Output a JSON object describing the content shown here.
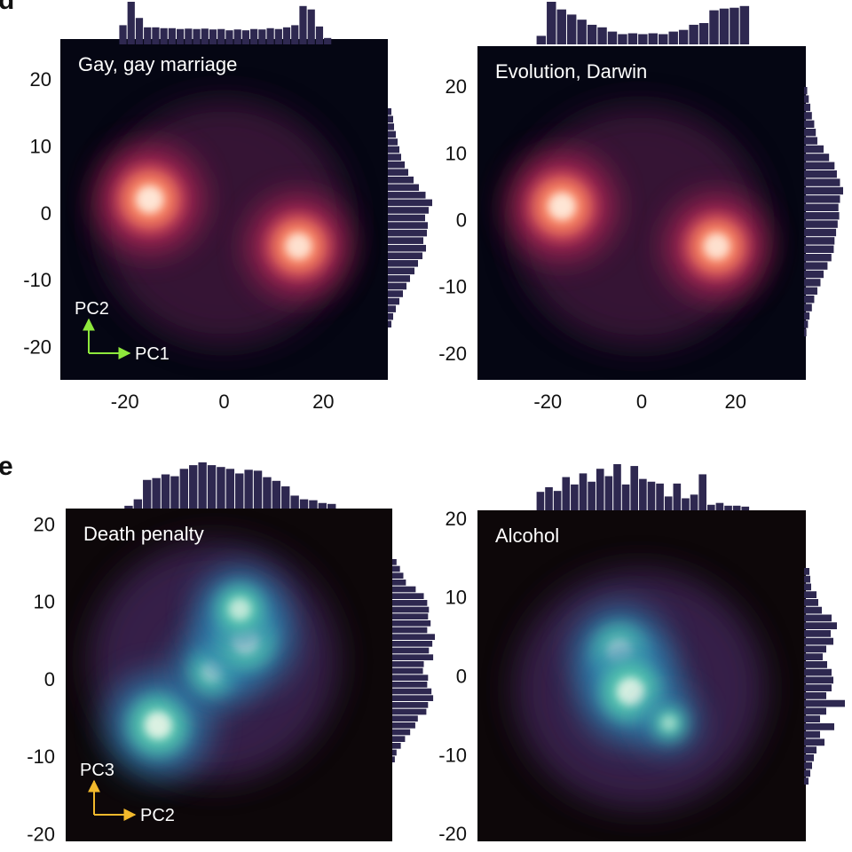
{
  "panel_labels": [
    "d",
    "e"
  ],
  "colors": {
    "histogram_bar": "#2e2850",
    "heatmap_magma_background": "#050613",
    "heatmap_mako_background": "#0d0709",
    "arrow_pc1_pc2": "#8ee83c",
    "arrow_pc2_pc3": "#f2b92c"
  },
  "chart_data": [
    {
      "type": "heatmap",
      "title": "Gay, gay marriage",
      "colormap": "magma",
      "xlabel": "PC1",
      "ylabel": "PC2",
      "xlim": [
        -33,
        33
      ],
      "ylim": [
        -25,
        26
      ],
      "xticks": [
        "-20",
        "0",
        "20"
      ],
      "yticks": [
        "-20",
        "-10",
        "0",
        "10",
        "20"
      ],
      "hotspots": [
        {
          "x": -15,
          "y": 2,
          "intensity": 1.0
        },
        {
          "x": 15,
          "y": -5,
          "intensity": 0.95
        }
      ],
      "top_histogram": [
        0.45,
        1.0,
        0.62,
        0.4,
        0.4,
        0.38,
        0.38,
        0.36,
        0.37,
        0.36,
        0.37,
        0.35,
        0.36,
        0.33,
        0.35,
        0.33,
        0.36,
        0.35,
        0.38,
        0.36,
        0.4,
        0.45,
        0.9,
        0.82,
        0.42,
        0.15
      ],
      "right_histogram": [
        0.08,
        0.12,
        0.14,
        0.18,
        0.22,
        0.26,
        0.3,
        0.38,
        0.46,
        0.58,
        0.7,
        0.85,
        1.0,
        0.92,
        0.84,
        0.9,
        0.88,
        0.8,
        0.86,
        0.78,
        0.68,
        0.6,
        0.5,
        0.42,
        0.34,
        0.26,
        0.18,
        0.12,
        0.08
      ],
      "axes_arrows": {
        "x_label": "PC1",
        "y_label": "PC2"
      }
    },
    {
      "type": "heatmap",
      "title": "Evolution, Darwin",
      "colormap": "magma",
      "xlabel": "",
      "ylabel": "",
      "xlim": [
        -35,
        35
      ],
      "ylim": [
        -24,
        26
      ],
      "xticks": [
        "-20",
        "0",
        "20"
      ],
      "yticks": [
        "-20",
        "-10",
        "0",
        "10",
        "20"
      ],
      "hotspots": [
        {
          "x": -17,
          "y": 2,
          "intensity": 1.0
        },
        {
          "x": 16,
          "y": -4,
          "intensity": 0.95
        }
      ],
      "top_histogram": [
        0.2,
        1.0,
        0.82,
        0.7,
        0.58,
        0.46,
        0.4,
        0.3,
        0.24,
        0.26,
        0.24,
        0.26,
        0.24,
        0.3,
        0.34,
        0.46,
        0.5,
        0.8,
        0.84,
        0.86,
        0.9
      ],
      "right_histogram": [
        0.08,
        0.12,
        0.16,
        0.2,
        0.26,
        0.3,
        0.34,
        0.5,
        0.64,
        0.78,
        0.84,
        0.92,
        1.0,
        0.92,
        0.88,
        0.9,
        0.86,
        0.82,
        0.78,
        0.76,
        0.7,
        0.6,
        0.5,
        0.42,
        0.34,
        0.26,
        0.2,
        0.14,
        0.1,
        0.06
      ]
    },
    {
      "type": "heatmap",
      "title": "Death penalty",
      "colormap": "mako",
      "xlabel": "PC2",
      "ylabel": "PC3",
      "xlim": [
        -30,
        30
      ],
      "ylim": [
        -21,
        22
      ],
      "xticks": [],
      "yticks": [
        "-20",
        "-10",
        "0",
        "10",
        "20"
      ],
      "hotspots": [
        {
          "x": -13,
          "y": -6,
          "intensity": 1.0
        },
        {
          "x": -3,
          "y": 1,
          "intensity": 0.75
        },
        {
          "x": 3,
          "y": 5,
          "intensity": 0.95
        },
        {
          "x": 2,
          "y": 9,
          "intensity": 0.8
        }
      ],
      "top_histogram": [
        0.06,
        0.2,
        0.62,
        0.66,
        0.74,
        0.7,
        0.86,
        0.94,
        1.0,
        0.94,
        0.9,
        0.86,
        0.76,
        0.84,
        0.82,
        0.68,
        0.6,
        0.48,
        0.28,
        0.2,
        0.18,
        0.12,
        0.1
      ],
      "right_histogram": [
        0.1,
        0.18,
        0.26,
        0.32,
        0.55,
        0.74,
        0.82,
        0.86,
        0.84,
        0.9,
        0.82,
        1.0,
        0.94,
        0.86,
        0.96,
        0.74,
        0.72,
        0.84,
        0.82,
        0.92,
        0.96,
        0.84,
        0.8,
        0.6,
        0.54,
        0.42,
        0.3,
        0.2,
        0.1,
        0.06
      ],
      "axes_arrows": {
        "x_label": "PC2",
        "y_label": "PC3"
      }
    },
    {
      "type": "heatmap",
      "title": "Alcohol",
      "colormap": "mako",
      "xlabel": "",
      "ylabel": "",
      "xlim": [
        -30,
        30
      ],
      "ylim": [
        -21,
        21
      ],
      "xticks": [],
      "yticks": [
        "-20",
        "-10",
        "0",
        "10",
        "20"
      ],
      "hotspots": [
        {
          "x": -4,
          "y": 3,
          "intensity": 0.9
        },
        {
          "x": -2,
          "y": -2,
          "intensity": 1.0
        },
        {
          "x": 5,
          "y": -6,
          "intensity": 0.55
        }
      ],
      "top_histogram": [
        0.4,
        0.5,
        0.42,
        0.72,
        0.56,
        0.8,
        0.62,
        0.9,
        0.74,
        1.0,
        0.56,
        0.96,
        0.68,
        0.62,
        0.58,
        0.3,
        0.58,
        0.26,
        0.34,
        0.78,
        0.12,
        0.16,
        0.1,
        0.1,
        0.08
      ],
      "right_histogram": [
        0.12,
        0.14,
        0.16,
        0.28,
        0.32,
        0.4,
        0.62,
        0.74,
        0.6,
        0.66,
        0.5,
        0.42,
        0.52,
        0.62,
        0.66,
        0.62,
        0.5,
        0.92,
        0.5,
        0.36,
        0.68,
        0.36,
        0.46,
        0.28,
        0.22,
        0.18,
        0.14,
        0.1
      ]
    }
  ]
}
